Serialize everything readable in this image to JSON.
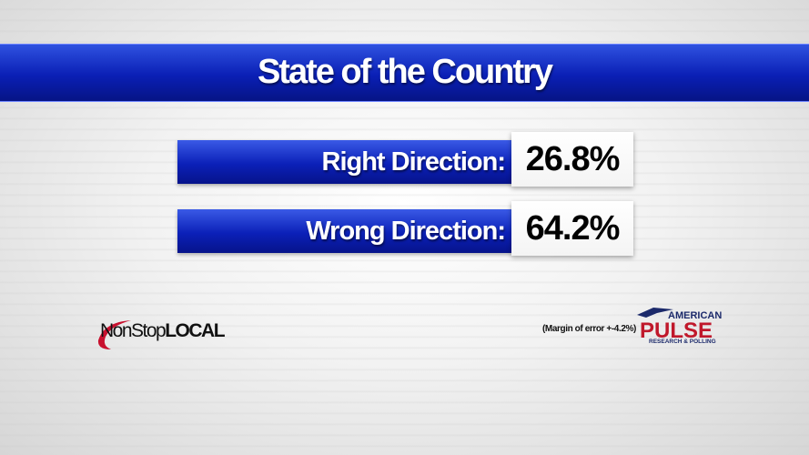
{
  "title": "State of the Country",
  "rows": [
    {
      "label": "Right Direction:",
      "value": "26.8%"
    },
    {
      "label": "Wrong Direction:",
      "value": "64.2%"
    }
  ],
  "footnote": "(Margin of error +-4.2%)",
  "logo": {
    "left": [
      "NonStop",
      "LOCAL"
    ]
  },
  "pollster": [
    "AMERICAN",
    "PULSE",
    "RESEARCH & POLLING"
  ]
}
